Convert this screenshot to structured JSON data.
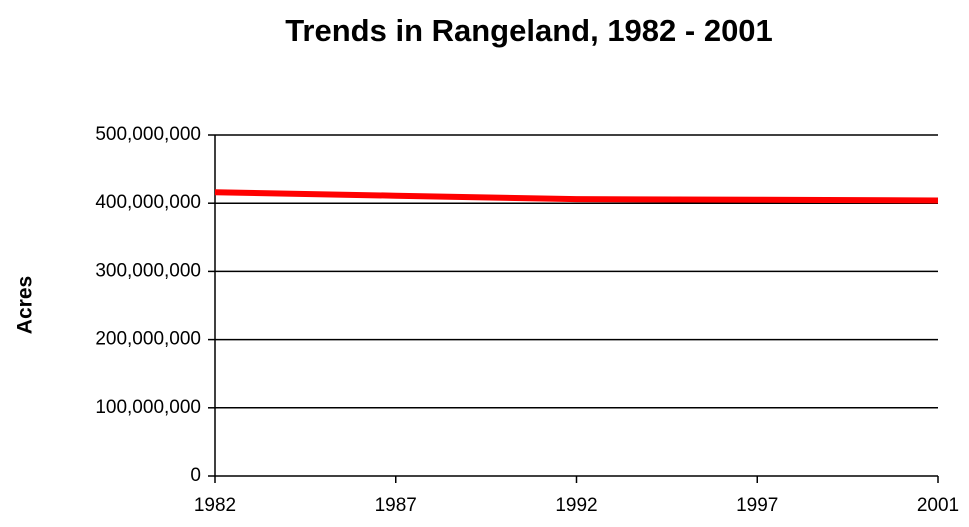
{
  "chart_data": {
    "type": "line",
    "title": "Trends in Rangeland, 1982 - 2001",
    "y_label": "Acres",
    "categories": [
      "1982",
      "1987",
      "1992",
      "1997",
      "2001"
    ],
    "series": [
      {
        "name": "Rangeland",
        "color": "#ff0000",
        "values": [
          416000000,
          411000000,
          406000000,
          405000000,
          404000000
        ]
      }
    ],
    "ylim": [
      0,
      500000000
    ],
    "yticks": [
      0,
      {
        "value": 100000000,
        "label": "100,000,000"
      },
      {
        "value": 200000000,
        "label": "200,000,000"
      },
      {
        "value": 300000000,
        "label": "300,000,000"
      },
      {
        "value": 400000000,
        "label": "400,000,000"
      },
      {
        "value": 500000000,
        "label": "500,000,000"
      }
    ],
    "grid": true
  }
}
